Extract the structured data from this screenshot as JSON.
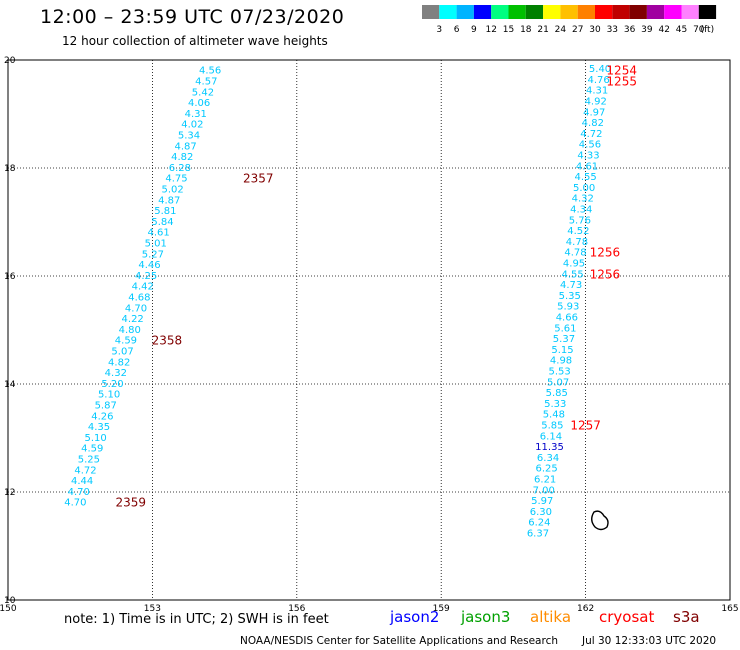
{
  "header": {
    "title": "12:00 – 23:59 UTC 07/23/2020",
    "subtitle": "12 hour collection of altimeter wave heights"
  },
  "colorbar": {
    "colors": [
      "#808080",
      "#00ffff",
      "#00b4ff",
      "#0000ff",
      "#00ff80",
      "#00c000",
      "#008000",
      "#ffff00",
      "#ffc000",
      "#ff8000",
      "#ff0000",
      "#c00000",
      "#800000",
      "#a000a0",
      "#ff00ff",
      "#ff80ff",
      "#000000"
    ],
    "labels": [
      "3",
      "6",
      "9",
      "12",
      "15",
      "18",
      "21",
      "24",
      "27",
      "30",
      "33",
      "36",
      "39",
      "42",
      "45",
      "70"
    ],
    "unit": "(ft)"
  },
  "map": {
    "lon_ticks": [
      "150",
      "153",
      "156",
      "159",
      "162",
      "165"
    ],
    "lat_ticks": [
      "20",
      "18",
      "16",
      "14",
      "12",
      "10"
    ],
    "value_color": "#00c8ff",
    "track_west": [
      {
        "lat": 19.82,
        "lon": 154.2,
        "v": "4.56"
      },
      {
        "lat": 19.62,
        "lon": 154.12,
        "v": "4.57"
      },
      {
        "lat": 19.42,
        "lon": 154.05,
        "v": "5.42"
      },
      {
        "lat": 19.22,
        "lon": 153.97,
        "v": "4.06"
      },
      {
        "lat": 19.02,
        "lon": 153.9,
        "v": "4.31"
      },
      {
        "lat": 18.82,
        "lon": 153.83,
        "v": "4.02"
      },
      {
        "lat": 18.62,
        "lon": 153.76,
        "v": "5.34"
      },
      {
        "lat": 18.42,
        "lon": 153.69,
        "v": "4.87"
      },
      {
        "lat": 18.22,
        "lon": 153.62,
        "v": "4.82"
      },
      {
        "lat": 18.02,
        "lon": 153.57,
        "v": "6.28"
      },
      {
        "lat": 17.82,
        "lon": 153.5,
        "v": "4.75"
      },
      {
        "lat": 17.62,
        "lon": 153.42,
        "v": "5.02"
      },
      {
        "lat": 17.42,
        "lon": 153.35,
        "v": "4.87"
      },
      {
        "lat": 17.22,
        "lon": 153.27,
        "v": "5.81"
      },
      {
        "lat": 17.02,
        "lon": 153.21,
        "v": "5.84"
      },
      {
        "lat": 16.82,
        "lon": 153.13,
        "v": "4.61"
      },
      {
        "lat": 16.62,
        "lon": 153.07,
        "v": "5.01"
      },
      {
        "lat": 16.42,
        "lon": 153.01,
        "v": "5.27"
      },
      {
        "lat": 16.22,
        "lon": 152.94,
        "v": "4.46"
      },
      {
        "lat": 16.02,
        "lon": 152.87,
        "v": "4.25"
      },
      {
        "lat": 15.82,
        "lon": 152.8,
        "v": "4.42"
      },
      {
        "lat": 15.62,
        "lon": 152.73,
        "v": "4.68"
      },
      {
        "lat": 15.42,
        "lon": 152.66,
        "v": "4.70"
      },
      {
        "lat": 15.22,
        "lon": 152.59,
        "v": "4.22"
      },
      {
        "lat": 15.02,
        "lon": 152.53,
        "v": "4.80"
      },
      {
        "lat": 14.82,
        "lon": 152.45,
        "v": "4.59"
      },
      {
        "lat": 14.62,
        "lon": 152.38,
        "v": "5.07"
      },
      {
        "lat": 14.42,
        "lon": 152.31,
        "v": "4.82"
      },
      {
        "lat": 14.22,
        "lon": 152.24,
        "v": "4.32"
      },
      {
        "lat": 14.02,
        "lon": 152.17,
        "v": "5.20"
      },
      {
        "lat": 13.82,
        "lon": 152.1,
        "v": "5.10"
      },
      {
        "lat": 13.62,
        "lon": 152.03,
        "v": "5.87"
      },
      {
        "lat": 13.42,
        "lon": 151.96,
        "v": "4.26"
      },
      {
        "lat": 13.22,
        "lon": 151.89,
        "v": "4.35"
      },
      {
        "lat": 13.02,
        "lon": 151.82,
        "v": "5.10"
      },
      {
        "lat": 12.82,
        "lon": 151.75,
        "v": "4.59"
      },
      {
        "lat": 12.62,
        "lon": 151.68,
        "v": "5.25"
      },
      {
        "lat": 12.42,
        "lon": 151.61,
        "v": "4.72"
      },
      {
        "lat": 12.22,
        "lon": 151.54,
        "v": "4.44"
      },
      {
        "lat": 12.02,
        "lon": 151.47,
        "v": "4.70"
      },
      {
        "lat": 11.82,
        "lon": 151.4,
        "v": "4.70"
      }
    ],
    "track_east": [
      {
        "lat": 19.85,
        "lon": 162.3,
        "v": "5.40"
      },
      {
        "lat": 19.65,
        "lon": 162.27,
        "v": "4.76"
      },
      {
        "lat": 19.45,
        "lon": 162.24,
        "v": "4.31"
      },
      {
        "lat": 19.25,
        "lon": 162.21,
        "v": "4.92"
      },
      {
        "lat": 19.05,
        "lon": 162.18,
        "v": "4.97"
      },
      {
        "lat": 18.85,
        "lon": 162.15,
        "v": "4.82"
      },
      {
        "lat": 18.65,
        "lon": 162.12,
        "v": "4.72"
      },
      {
        "lat": 18.45,
        "lon": 162.09,
        "v": "4.56"
      },
      {
        "lat": 18.25,
        "lon": 162.06,
        "v": "4.33"
      },
      {
        "lat": 18.05,
        "lon": 162.03,
        "v": "4.61"
      },
      {
        "lat": 17.85,
        "lon": 162.0,
        "v": "4.55"
      },
      {
        "lat": 17.65,
        "lon": 161.97,
        "v": "5.00"
      },
      {
        "lat": 17.45,
        "lon": 161.94,
        "v": "4.32"
      },
      {
        "lat": 17.25,
        "lon": 161.91,
        "v": "4.34"
      },
      {
        "lat": 17.05,
        "lon": 161.88,
        "v": "5.76"
      },
      {
        "lat": 16.85,
        "lon": 161.85,
        "v": "4.52"
      },
      {
        "lat": 16.65,
        "lon": 161.82,
        "v": "4.78"
      },
      {
        "lat": 16.45,
        "lon": 161.79,
        "v": "4.78"
      },
      {
        "lat": 16.25,
        "lon": 161.76,
        "v": "4.95"
      },
      {
        "lat": 16.05,
        "lon": 161.73,
        "v": "4.55"
      },
      {
        "lat": 15.85,
        "lon": 161.7,
        "v": "4.73"
      },
      {
        "lat": 15.65,
        "lon": 161.67,
        "v": "5.35"
      },
      {
        "lat": 15.45,
        "lon": 161.64,
        "v": "5.93"
      },
      {
        "lat": 15.25,
        "lon": 161.61,
        "v": "4.66"
      },
      {
        "lat": 15.05,
        "lon": 161.58,
        "v": "5.61"
      },
      {
        "lat": 14.85,
        "lon": 161.55,
        "v": "5.37"
      },
      {
        "lat": 14.65,
        "lon": 161.52,
        "v": "5.15"
      },
      {
        "lat": 14.45,
        "lon": 161.49,
        "v": "4.98"
      },
      {
        "lat": 14.25,
        "lon": 161.46,
        "v": "5.53"
      },
      {
        "lat": 14.05,
        "lon": 161.43,
        "v": "5.07"
      },
      {
        "lat": 13.85,
        "lon": 161.4,
        "v": "5.85"
      },
      {
        "lat": 13.65,
        "lon": 161.37,
        "v": "5.33"
      },
      {
        "lat": 13.45,
        "lon": 161.34,
        "v": "5.48"
      },
      {
        "lat": 13.25,
        "lon": 161.31,
        "v": "5.85"
      },
      {
        "lat": 13.05,
        "lon": 161.28,
        "v": "6.14"
      },
      {
        "lat": 12.85,
        "lon": 161.25,
        "v": "11.35"
      },
      {
        "lat": 12.65,
        "lon": 161.22,
        "v": "6.34"
      },
      {
        "lat": 12.45,
        "lon": 161.19,
        "v": "6.25"
      },
      {
        "lat": 12.25,
        "lon": 161.16,
        "v": "6.21"
      },
      {
        "lat": 12.05,
        "lon": 161.13,
        "v": "7.00"
      },
      {
        "lat": 11.85,
        "lon": 161.1,
        "v": "5.97"
      },
      {
        "lat": 11.65,
        "lon": 161.07,
        "v": "6.30"
      },
      {
        "lat": 11.45,
        "lon": 161.04,
        "v": "6.24"
      },
      {
        "lat": 11.25,
        "lon": 161.01,
        "v": "6.37"
      }
    ],
    "value_color_highlight_index": 35,
    "times": [
      {
        "lat": 19.82,
        "lon": 162.75,
        "t": "1254",
        "color": "#ff0000"
      },
      {
        "lat": 19.62,
        "lon": 162.75,
        "t": "1255",
        "color": "#ff0000"
      },
      {
        "lat": 16.45,
        "lon": 162.4,
        "t": "1256",
        "color": "#ff0000"
      },
      {
        "lat": 16.05,
        "lon": 162.4,
        "t": "1256",
        "color": "#ff0000"
      },
      {
        "lat": 13.25,
        "lon": 162.0,
        "t": "1257",
        "color": "#ff0000"
      },
      {
        "lat": 17.82,
        "lon": 155.2,
        "t": "2357",
        "color": "#800000"
      },
      {
        "lat": 14.82,
        "lon": 153.3,
        "t": "2358",
        "color": "#800000"
      },
      {
        "lat": 11.82,
        "lon": 152.55,
        "t": "2359",
        "color": "#800000"
      }
    ]
  },
  "footer": {
    "note": "note:  1) Time is in UTC;  2) SWH is in feet",
    "satellites": [
      {
        "name": "jason2",
        "color": "#0000ff"
      },
      {
        "name": "jason3",
        "color": "#00a000"
      },
      {
        "name": "altika",
        "color": "#ff8c00"
      },
      {
        "name": "cryosat",
        "color": "#ff0000"
      },
      {
        "name": "s3a",
        "color": "#800000"
      }
    ],
    "credit": "NOAA/NESDIS Center for Satellite Applications and Research",
    "timestamp": "Jul 30 12:33:03 UTC 2020"
  }
}
